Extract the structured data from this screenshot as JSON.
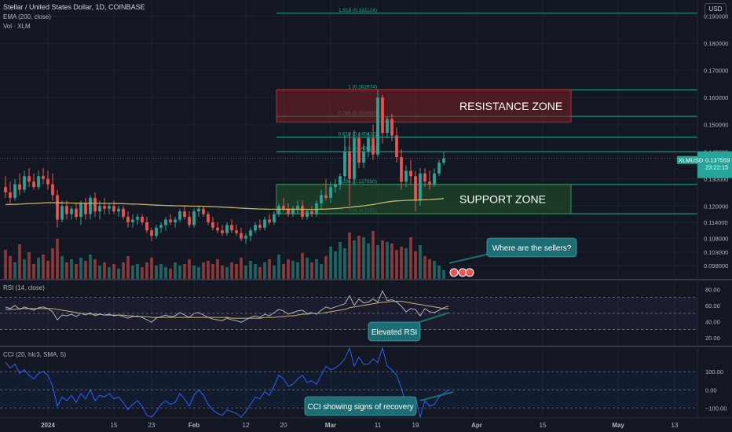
{
  "header": {
    "title": "Stellar / United States Dollar, 1D, COINBASE",
    "indicator_ema": "EMA (200, close)",
    "indicator_vol": "Vol · XLM"
  },
  "currency_button": "USD",
  "price_axis": {
    "ticks": [
      "0.190000",
      "0.180000",
      "0.170000",
      "0.160000",
      "0.150000",
      "0.140000",
      "0.130000",
      "0.120000",
      "0.114000",
      "0.108000",
      "0.103000",
      "0.098000"
    ],
    "last_symbol": "XLMUSD",
    "last_price": "0.137559",
    "countdown": "23:22:15"
  },
  "time_axis": {
    "labels": [
      "2024",
      "15",
      "23",
      "Feb",
      "12",
      "20",
      "Mar",
      "11",
      "19",
      "Apr",
      "15",
      "May",
      "13"
    ]
  },
  "fib_levels": [
    {
      "label": "1.618 (0.191124)",
      "price": 0.191124
    },
    {
      "label": "1 (0.162874)",
      "price": 0.162874
    },
    {
      "label": "0.786 (0.153092)",
      "price": 0.153092
    },
    {
      "label": "0.618 (0.145412)",
      "price": 0.145412
    },
    {
      "label": "0.5 (0.140024)",
      "price": 0.140024
    },
    {
      "label": "0.236 (0.127950)",
      "price": 0.12795
    },
    {
      "label": "0 (0.117163)",
      "price": 0.117163
    }
  ],
  "zones": {
    "resistance": {
      "label": "RESISTANCE ZONE",
      "top": 0.162874,
      "bottom": 0.151
    },
    "support": {
      "label": "SUPPORT ZONE",
      "top": 0.12795,
      "bottom": 0.117163
    }
  },
  "rsi": {
    "label": "RSI (14, close)",
    "ticks": [
      "80.00",
      "60.00",
      "40.00",
      "20.00"
    ],
    "upper": 70,
    "lower": 30
  },
  "cci": {
    "label": "CCI (20, hlc3, SMA, 5)",
    "ticks": [
      "100.00",
      "0.00",
      "−100.00"
    ]
  },
  "callouts": {
    "sellers": "Where are the sellers?",
    "rsi": "Elevated RSI",
    "cci": "CCI showing signs of recovery"
  },
  "colors": {
    "bg": "#131722",
    "up": "#26a69a",
    "down": "#ef5350",
    "ema": "#c9b26a",
    "fib": "#22ab94",
    "rsi_line": "#b2b5be",
    "rsi_ma": "#c9b26a",
    "cci_line": "#2962ff",
    "resistance_fill": "#7a1f23",
    "support_fill": "#1e4a2a",
    "callout_fill": "#1c6e74"
  },
  "chart_data": {
    "type": "candlestick",
    "title": "Stellar / United States Dollar, 1D, COINBASE",
    "ylim": [
      0.094,
      0.196
    ],
    "x_range": [
      "2023-12-23",
      "2024-05-17"
    ],
    "start_date": "2023-12-23",
    "candles": [
      {
        "d": "2023-12-23",
        "o": 0.127,
        "h": 0.131,
        "l": 0.123,
        "c": 0.125
      },
      {
        "d": "2023-12-24",
        "o": 0.125,
        "h": 0.129,
        "l": 0.121,
        "c": 0.123
      },
      {
        "d": "2023-12-25",
        "o": 0.123,
        "h": 0.13,
        "l": 0.122,
        "c": 0.128
      },
      {
        "d": "2023-12-26",
        "o": 0.128,
        "h": 0.132,
        "l": 0.124,
        "c": 0.126
      },
      {
        "d": "2023-12-27",
        "o": 0.126,
        "h": 0.133,
        "l": 0.125,
        "c": 0.131
      },
      {
        "d": "2023-12-28",
        "o": 0.131,
        "h": 0.134,
        "l": 0.127,
        "c": 0.129
      },
      {
        "d": "2023-12-29",
        "o": 0.129,
        "h": 0.132,
        "l": 0.126,
        "c": 0.127
      },
      {
        "d": "2023-12-30",
        "o": 0.127,
        "h": 0.133,
        "l": 0.126,
        "c": 0.131
      },
      {
        "d": "2023-12-31",
        "o": 0.131,
        "h": 0.134,
        "l": 0.128,
        "c": 0.13
      },
      {
        "d": "2024-01-01",
        "o": 0.13,
        "h": 0.133,
        "l": 0.126,
        "c": 0.128
      },
      {
        "d": "2024-01-02",
        "o": 0.128,
        "h": 0.132,
        "l": 0.122,
        "c": 0.124
      },
      {
        "d": "2024-01-03",
        "o": 0.124,
        "h": 0.126,
        "l": 0.112,
        "c": 0.115
      },
      {
        "d": "2024-01-04",
        "o": 0.115,
        "h": 0.122,
        "l": 0.114,
        "c": 0.12
      },
      {
        "d": "2024-01-05",
        "o": 0.12,
        "h": 0.122,
        "l": 0.115,
        "c": 0.117
      },
      {
        "d": "2024-01-06",
        "o": 0.117,
        "h": 0.12,
        "l": 0.115,
        "c": 0.119
      },
      {
        "d": "2024-01-07",
        "o": 0.119,
        "h": 0.121,
        "l": 0.115,
        "c": 0.116
      },
      {
        "d": "2024-01-08",
        "o": 0.116,
        "h": 0.122,
        "l": 0.113,
        "c": 0.121
      },
      {
        "d": "2024-01-09",
        "o": 0.121,
        "h": 0.123,
        "l": 0.115,
        "c": 0.117
      },
      {
        "d": "2024-01-10",
        "o": 0.117,
        "h": 0.124,
        "l": 0.115,
        "c": 0.123
      },
      {
        "d": "2024-01-11",
        "o": 0.123,
        "h": 0.125,
        "l": 0.116,
        "c": 0.118
      },
      {
        "d": "2024-01-12",
        "o": 0.118,
        "h": 0.122,
        "l": 0.115,
        "c": 0.12
      },
      {
        "d": "2024-01-13",
        "o": 0.12,
        "h": 0.123,
        "l": 0.117,
        "c": 0.119
      },
      {
        "d": "2024-01-14",
        "o": 0.119,
        "h": 0.121,
        "l": 0.117,
        "c": 0.12
      },
      {
        "d": "2024-01-15",
        "o": 0.12,
        "h": 0.122,
        "l": 0.117,
        "c": 0.118
      },
      {
        "d": "2024-01-16",
        "o": 0.118,
        "h": 0.12,
        "l": 0.116,
        "c": 0.119
      },
      {
        "d": "2024-01-17",
        "o": 0.119,
        "h": 0.12,
        "l": 0.115,
        "c": 0.116
      },
      {
        "d": "2024-01-18",
        "o": 0.116,
        "h": 0.118,
        "l": 0.112,
        "c": 0.114
      },
      {
        "d": "2024-01-19",
        "o": 0.114,
        "h": 0.117,
        "l": 0.112,
        "c": 0.115
      },
      {
        "d": "2024-01-20",
        "o": 0.115,
        "h": 0.117,
        "l": 0.113,
        "c": 0.116
      },
      {
        "d": "2024-01-21",
        "o": 0.116,
        "h": 0.117,
        "l": 0.113,
        "c": 0.114
      },
      {
        "d": "2024-01-22",
        "o": 0.114,
        "h": 0.116,
        "l": 0.11,
        "c": 0.111
      },
      {
        "d": "2024-01-23",
        "o": 0.111,
        "h": 0.112,
        "l": 0.107,
        "c": 0.109
      },
      {
        "d": "2024-01-24",
        "o": 0.109,
        "h": 0.113,
        "l": 0.108,
        "c": 0.112
      },
      {
        "d": "2024-01-25",
        "o": 0.112,
        "h": 0.114,
        "l": 0.11,
        "c": 0.113
      },
      {
        "d": "2024-01-26",
        "o": 0.113,
        "h": 0.116,
        "l": 0.111,
        "c": 0.115
      },
      {
        "d": "2024-01-27",
        "o": 0.115,
        "h": 0.117,
        "l": 0.113,
        "c": 0.114
      },
      {
        "d": "2024-01-28",
        "o": 0.114,
        "h": 0.116,
        "l": 0.112,
        "c": 0.115
      },
      {
        "d": "2024-01-29",
        "o": 0.115,
        "h": 0.119,
        "l": 0.114,
        "c": 0.118
      },
      {
        "d": "2024-01-30",
        "o": 0.118,
        "h": 0.12,
        "l": 0.115,
        "c": 0.116
      },
      {
        "d": "2024-01-31",
        "o": 0.116,
        "h": 0.118,
        "l": 0.112,
        "c": 0.113
      },
      {
        "d": "2024-02-01",
        "o": 0.113,
        "h": 0.119,
        "l": 0.112,
        "c": 0.118
      },
      {
        "d": "2024-02-02",
        "o": 0.118,
        "h": 0.12,
        "l": 0.116,
        "c": 0.119
      },
      {
        "d": "2024-02-03",
        "o": 0.119,
        "h": 0.12,
        "l": 0.116,
        "c": 0.117
      },
      {
        "d": "2024-02-04",
        "o": 0.117,
        "h": 0.118,
        "l": 0.113,
        "c": 0.114
      },
      {
        "d": "2024-02-05",
        "o": 0.114,
        "h": 0.116,
        "l": 0.111,
        "c": 0.112
      },
      {
        "d": "2024-02-06",
        "o": 0.112,
        "h": 0.114,
        "l": 0.11,
        "c": 0.111
      },
      {
        "d": "2024-02-07",
        "o": 0.111,
        "h": 0.113,
        "l": 0.109,
        "c": 0.11
      },
      {
        "d": "2024-02-08",
        "o": 0.11,
        "h": 0.114,
        "l": 0.109,
        "c": 0.113
      },
      {
        "d": "2024-02-09",
        "o": 0.113,
        "h": 0.115,
        "l": 0.11,
        "c": 0.111
      },
      {
        "d": "2024-02-10",
        "o": 0.111,
        "h": 0.113,
        "l": 0.109,
        "c": 0.11
      },
      {
        "d": "2024-02-11",
        "o": 0.11,
        "h": 0.112,
        "l": 0.107,
        "c": 0.108
      },
      {
        "d": "2024-02-12",
        "o": 0.108,
        "h": 0.11,
        "l": 0.106,
        "c": 0.109
      },
      {
        "d": "2024-02-13",
        "o": 0.109,
        "h": 0.112,
        "l": 0.107,
        "c": 0.111
      },
      {
        "d": "2024-02-14",
        "o": 0.111,
        "h": 0.114,
        "l": 0.11,
        "c": 0.113
      },
      {
        "d": "2024-02-15",
        "o": 0.113,
        "h": 0.115,
        "l": 0.111,
        "c": 0.112
      },
      {
        "d": "2024-02-16",
        "o": 0.112,
        "h": 0.116,
        "l": 0.111,
        "c": 0.115
      },
      {
        "d": "2024-02-17",
        "o": 0.115,
        "h": 0.117,
        "l": 0.113,
        "c": 0.114
      },
      {
        "d": "2024-02-18",
        "o": 0.114,
        "h": 0.118,
        "l": 0.113,
        "c": 0.117
      },
      {
        "d": "2024-02-19",
        "o": 0.117,
        "h": 0.121,
        "l": 0.116,
        "c": 0.12
      },
      {
        "d": "2024-02-20",
        "o": 0.12,
        "h": 0.123,
        "l": 0.118,
        "c": 0.119
      },
      {
        "d": "2024-02-21",
        "o": 0.119,
        "h": 0.121,
        "l": 0.116,
        "c": 0.117
      },
      {
        "d": "2024-02-22",
        "o": 0.117,
        "h": 0.12,
        "l": 0.116,
        "c": 0.119
      },
      {
        "d": "2024-02-23",
        "o": 0.119,
        "h": 0.122,
        "l": 0.117,
        "c": 0.12
      },
      {
        "d": "2024-02-24",
        "o": 0.12,
        "h": 0.122,
        "l": 0.115,
        "c": 0.116
      },
      {
        "d": "2024-02-25",
        "o": 0.116,
        "h": 0.119,
        "l": 0.115,
        "c": 0.118
      },
      {
        "d": "2024-02-26",
        "o": 0.118,
        "h": 0.12,
        "l": 0.116,
        "c": 0.117
      },
      {
        "d": "2024-02-27",
        "o": 0.117,
        "h": 0.122,
        "l": 0.116,
        "c": 0.121
      },
      {
        "d": "2024-02-28",
        "o": 0.121,
        "h": 0.126,
        "l": 0.119,
        "c": 0.124
      },
      {
        "d": "2024-02-29",
        "o": 0.124,
        "h": 0.13,
        "l": 0.122,
        "c": 0.123
      },
      {
        "d": "2024-03-01",
        "o": 0.123,
        "h": 0.129,
        "l": 0.121,
        "c": 0.127
      },
      {
        "d": "2024-03-02",
        "o": 0.127,
        "h": 0.13,
        "l": 0.125,
        "c": 0.128
      },
      {
        "d": "2024-03-03",
        "o": 0.128,
        "h": 0.132,
        "l": 0.126,
        "c": 0.131
      },
      {
        "d": "2024-03-04",
        "o": 0.131,
        "h": 0.146,
        "l": 0.129,
        "c": 0.14
      },
      {
        "d": "2024-03-05",
        "o": 0.14,
        "h": 0.147,
        "l": 0.12,
        "c": 0.13
      },
      {
        "d": "2024-03-06",
        "o": 0.13,
        "h": 0.148,
        "l": 0.128,
        "c": 0.145
      },
      {
        "d": "2024-03-07",
        "o": 0.145,
        "h": 0.147,
        "l": 0.134,
        "c": 0.136
      },
      {
        "d": "2024-03-08",
        "o": 0.136,
        "h": 0.143,
        "l": 0.134,
        "c": 0.14
      },
      {
        "d": "2024-03-09",
        "o": 0.14,
        "h": 0.147,
        "l": 0.138,
        "c": 0.145
      },
      {
        "d": "2024-03-10",
        "o": 0.145,
        "h": 0.15,
        "l": 0.137,
        "c": 0.139
      },
      {
        "d": "2024-03-11",
        "o": 0.139,
        "h": 0.1628,
        "l": 0.138,
        "c": 0.16
      },
      {
        "d": "2024-03-12",
        "o": 0.16,
        "h": 0.161,
        "l": 0.143,
        "c": 0.147
      },
      {
        "d": "2024-03-13",
        "o": 0.147,
        "h": 0.153,
        "l": 0.145,
        "c": 0.152
      },
      {
        "d": "2024-03-14",
        "o": 0.152,
        "h": 0.154,
        "l": 0.144,
        "c": 0.146
      },
      {
        "d": "2024-03-15",
        "o": 0.146,
        "h": 0.149,
        "l": 0.136,
        "c": 0.138
      },
      {
        "d": "2024-03-16",
        "o": 0.138,
        "h": 0.141,
        "l": 0.126,
        "c": 0.129
      },
      {
        "d": "2024-03-17",
        "o": 0.129,
        "h": 0.135,
        "l": 0.127,
        "c": 0.133
      },
      {
        "d": "2024-03-18",
        "o": 0.133,
        "h": 0.137,
        "l": 0.128,
        "c": 0.131
      },
      {
        "d": "2024-03-19",
        "o": 0.131,
        "h": 0.133,
        "l": 0.118,
        "c": 0.122
      },
      {
        "d": "2024-03-20",
        "o": 0.122,
        "h": 0.134,
        "l": 0.12,
        "c": 0.132
      },
      {
        "d": "2024-03-21",
        "o": 0.132,
        "h": 0.134,
        "l": 0.127,
        "c": 0.129
      },
      {
        "d": "2024-03-22",
        "o": 0.129,
        "h": 0.133,
        "l": 0.126,
        "c": 0.128
      },
      {
        "d": "2024-03-23",
        "o": 0.128,
        "h": 0.134,
        "l": 0.127,
        "c": 0.132
      },
      {
        "d": "2024-03-24",
        "o": 0.132,
        "h": 0.137,
        "l": 0.131,
        "c": 0.136
      },
      {
        "d": "2024-03-25",
        "o": 0.136,
        "h": 0.14,
        "l": 0.135,
        "c": 0.1376
      }
    ],
    "volume": [
      38,
      30,
      22,
      45,
      26,
      35,
      20,
      28,
      32,
      24,
      40,
      52,
      30,
      22,
      26,
      20,
      28,
      24,
      32,
      26,
      18,
      22,
      16,
      20,
      14,
      22,
      30,
      18,
      20,
      16,
      22,
      28,
      18,
      20,
      16,
      14,
      22,
      18,
      20,
      26,
      18,
      16,
      22,
      24,
      20,
      26,
      18,
      16,
      22,
      20,
      28,
      18,
      24,
      20,
      16,
      22,
      26,
      18,
      32,
      20,
      26,
      24,
      22,
      34,
      28,
      22,
      26,
      20,
      30,
      42,
      36,
      48,
      40,
      60,
      50,
      56,
      54,
      46,
      62,
      44,
      50,
      48,
      46,
      38,
      42,
      40,
      54,
      36,
      44,
      30,
      26,
      24,
      18,
      12,
      10
    ],
    "rsi_values": [
      58,
      56,
      60,
      55,
      58,
      56,
      54,
      57,
      58,
      56,
      52,
      42,
      48,
      47,
      49,
      46,
      50,
      48,
      51,
      47,
      49,
      48,
      49,
      47,
      48,
      46,
      44,
      46,
      47,
      45,
      42,
      39,
      44,
      46,
      48,
      46,
      47,
      51,
      48,
      45,
      50,
      51,
      48,
      45,
      43,
      42,
      41,
      44,
      42,
      41,
      39,
      42,
      45,
      47,
      45,
      49,
      47,
      51,
      55,
      53,
      49,
      51,
      53,
      54,
      50,
      51,
      49,
      54,
      58,
      56,
      58,
      60,
      62,
      72,
      60,
      68,
      63,
      64,
      68,
      64,
      78,
      66,
      67,
      64,
      59,
      52,
      56,
      55,
      47,
      56,
      52,
      51,
      54,
      57,
      59
    ],
    "rsi_ma_values": [
      55,
      55,
      55,
      56,
      56,
      56,
      56,
      56,
      56,
      56,
      56,
      55,
      54,
      53,
      52,
      51,
      50,
      50,
      49,
      49,
      49,
      48,
      48,
      48,
      48,
      48,
      47,
      47,
      46,
      46,
      46,
      45,
      45,
      45,
      45,
      45,
      45,
      45,
      45,
      45,
      45,
      45,
      45,
      45,
      45,
      45,
      45,
      45,
      44,
      44,
      44,
      44,
      44,
      44,
      44,
      45,
      45,
      45,
      46,
      46,
      47,
      47,
      48,
      49,
      49,
      50,
      50,
      50,
      51,
      52,
      53,
      54,
      55,
      57,
      58,
      59,
      60,
      61,
      62,
      63,
      64,
      64,
      65,
      65,
      65,
      64,
      63,
      62,
      61,
      60,
      59,
      58,
      57,
      56,
      56
    ],
    "cci_values": [
      150,
      120,
      140,
      90,
      110,
      80,
      60,
      90,
      100,
      80,
      20,
      -90,
      -40,
      -60,
      -30,
      -70,
      -20,
      -50,
      0,
      -60,
      -30,
      -40,
      -20,
      -50,
      -40,
      -70,
      -110,
      -80,
      -60,
      -90,
      -140,
      -180,
      -120,
      -80,
      -60,
      -80,
      -70,
      -20,
      -50,
      -90,
      -30,
      0,
      -30,
      -80,
      -110,
      -130,
      -140,
      -110,
      -120,
      -130,
      -160,
      -120,
      -80,
      -40,
      -50,
      -10,
      -30,
      20,
      80,
      60,
      20,
      30,
      60,
      80,
      40,
      50,
      30,
      80,
      130,
      110,
      120,
      140,
      170,
      250,
      130,
      180,
      140,
      140,
      170,
      150,
      230,
      130,
      110,
      80,
      10,
      -80,
      -60,
      -40,
      -150,
      -60,
      -90,
      -80,
      -40,
      -20,
      0
    ]
  }
}
